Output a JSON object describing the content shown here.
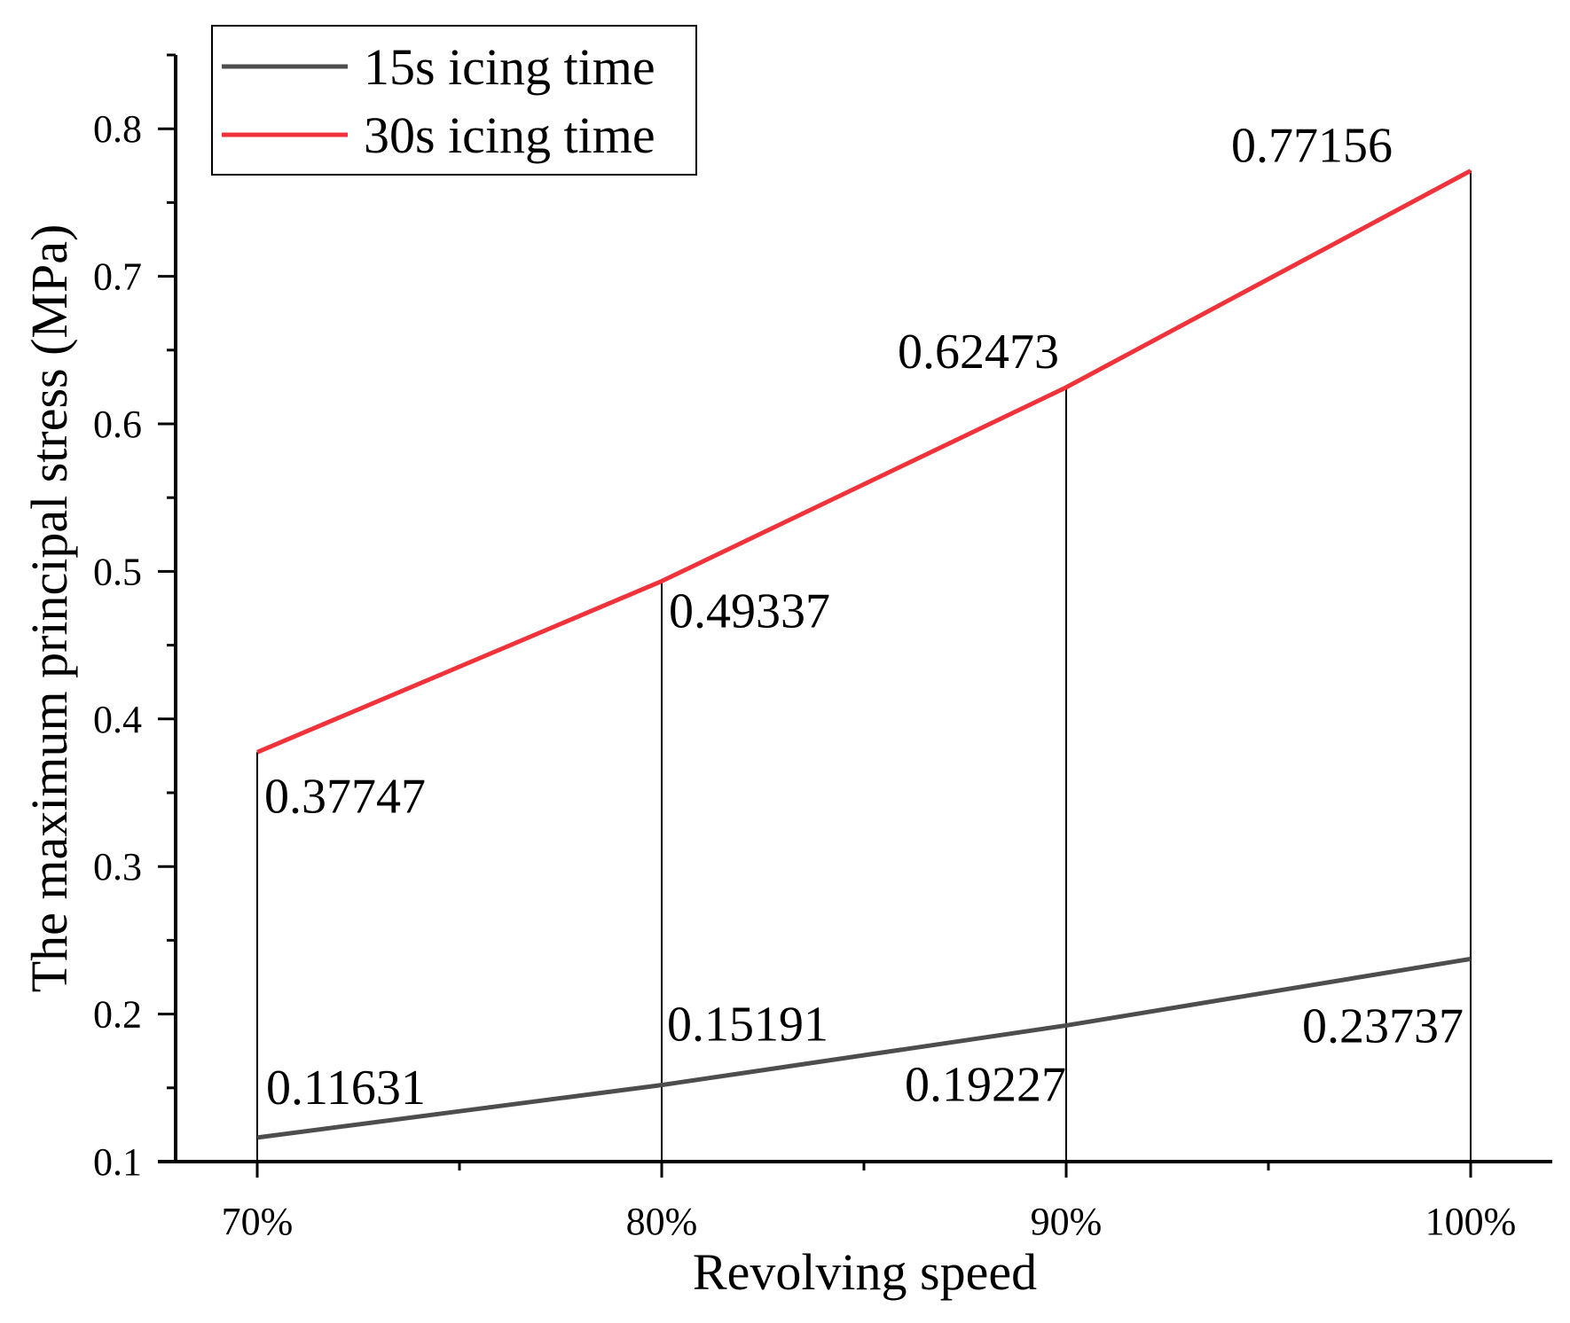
{
  "chart_data": {
    "type": "line",
    "title": "",
    "xlabel": "Revolving speed",
    "ylabel": "The maximum principal stress (MPa)",
    "categories": [
      "70%",
      "80%",
      "90%",
      "100%"
    ],
    "ylim": [
      0.1,
      0.85
    ],
    "yticks": [
      0.1,
      0.2,
      0.3,
      0.4,
      0.5,
      0.6,
      0.7,
      0.8
    ],
    "ytick_labels": [
      "0.1",
      "0.2",
      "0.3",
      "0.4",
      "0.5",
      "0.6",
      "0.7",
      "0.8"
    ],
    "grid": false,
    "legend_position": "top-left",
    "drop_lines": true,
    "series": [
      {
        "name": "15s icing time",
        "color": "#4d4d4d",
        "values": [
          0.11631,
          0.15191,
          0.19227,
          0.23737
        ],
        "labels": [
          "0.11631",
          "0.15191",
          "0.19227",
          "0.23737"
        ]
      },
      {
        "name": "30s icing time",
        "color": "#f0333a",
        "values": [
          0.37747,
          0.49337,
          0.62473,
          0.77156
        ],
        "labels": [
          "0.37747",
          "0.49337",
          "0.62473",
          "0.77156"
        ]
      }
    ]
  }
}
